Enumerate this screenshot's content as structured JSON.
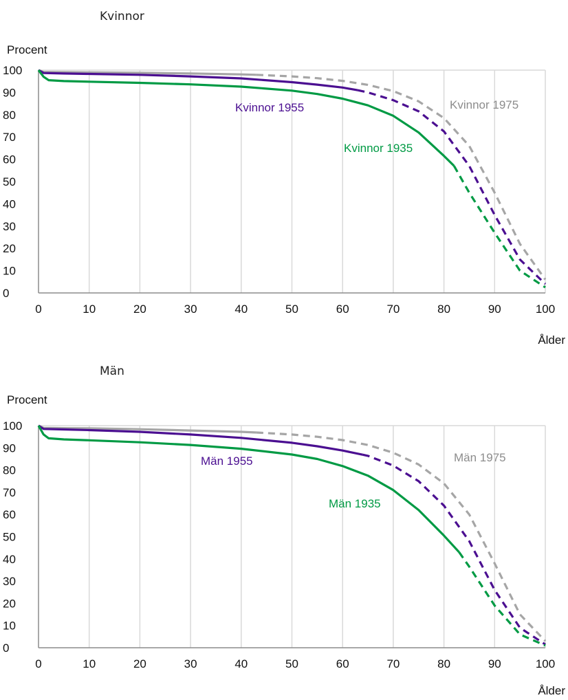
{
  "chart_data": [
    {
      "type": "line",
      "title": "Kvinnor",
      "ylabel": "Procent",
      "xlabel": "Ålder",
      "xlim": [
        0,
        100
      ],
      "ylim": [
        0,
        100
      ],
      "xticks": [
        "0",
        "10",
        "20",
        "30",
        "40",
        "50",
        "60",
        "70",
        "80",
        "90",
        "100"
      ],
      "yticks": [
        "0",
        "10",
        "20",
        "30",
        "40",
        "50",
        "60",
        "70",
        "80",
        "90",
        "100"
      ],
      "grid": true,
      "series": [
        {
          "name": "Kvinnor 1975",
          "color": "#a6a6a6",
          "observed_until": 43,
          "x": [
            0,
            1,
            5,
            10,
            20,
            30,
            40,
            43,
            50,
            55,
            60,
            65,
            70,
            75,
            80,
            85,
            90,
            95,
            100
          ],
          "y": [
            100,
            99.2,
            99.1,
            99.0,
            98.8,
            98.5,
            98.1,
            97.9,
            97.2,
            96.4,
            95.2,
            93.4,
            90.6,
            86.0,
            78.5,
            66.0,
            45.0,
            22.0,
            6.0
          ]
        },
        {
          "name": "Kvinnor 1955",
          "color": "#4b0f91",
          "observed_until": 63,
          "x": [
            0,
            1,
            5,
            10,
            20,
            30,
            40,
            50,
            55,
            60,
            63,
            65,
            70,
            75,
            80,
            85,
            90,
            95,
            100
          ],
          "y": [
            100,
            98.7,
            98.5,
            98.3,
            97.9,
            97.2,
            96.3,
            94.6,
            93.5,
            92.2,
            91.0,
            90.0,
            86.5,
            81.5,
            72.5,
            57.0,
            35.0,
            15.0,
            4.0
          ]
        },
        {
          "name": "Kvinnor 1935",
          "color": "#009a44",
          "observed_until": 82,
          "x": [
            0,
            1,
            2,
            5,
            10,
            20,
            30,
            40,
            50,
            55,
            60,
            65,
            70,
            75,
            80,
            82,
            85,
            90,
            95,
            100
          ],
          "y": [
            100,
            97,
            95.5,
            95.1,
            94.8,
            94.3,
            93.6,
            92.6,
            90.8,
            89.3,
            87.2,
            84.2,
            79.5,
            72.0,
            61.5,
            57.0,
            45.0,
            27.0,
            10.0,
            2.5
          ]
        }
      ]
    },
    {
      "type": "line",
      "title": "Män",
      "ylabel": "Procent",
      "xlabel": "Ålder",
      "xlim": [
        0,
        100
      ],
      "ylim": [
        0,
        100
      ],
      "xticks": [
        "0",
        "10",
        "20",
        "30",
        "40",
        "50",
        "60",
        "70",
        "80",
        "90",
        "100"
      ],
      "yticks": [
        "0",
        "10",
        "20",
        "30",
        "40",
        "50",
        "60",
        "70",
        "80",
        "90",
        "100"
      ],
      "grid": true,
      "series": [
        {
          "name": "Män 1975",
          "color": "#a6a6a6",
          "observed_until": 43,
          "x": [
            0,
            1,
            5,
            10,
            20,
            30,
            40,
            43,
            50,
            55,
            60,
            65,
            70,
            75,
            80,
            85,
            90,
            95,
            100
          ],
          "y": [
            100,
            99.0,
            98.9,
            98.8,
            98.4,
            97.8,
            97.2,
            96.9,
            96.0,
            95.0,
            93.5,
            91.3,
            87.8,
            82.5,
            74.0,
            60.0,
            38.0,
            15.0,
            3.0
          ]
        },
        {
          "name": "Män 1955",
          "color": "#4b0f91",
          "observed_until": 64,
          "x": [
            0,
            1,
            5,
            10,
            20,
            30,
            40,
            50,
            55,
            60,
            64,
            65,
            70,
            75,
            80,
            85,
            90,
            95,
            100
          ],
          "y": [
            100,
            98.5,
            98.3,
            98.0,
            97.2,
            96.0,
            94.5,
            92.3,
            90.7,
            88.8,
            86.9,
            86.4,
            82.0,
            75.0,
            64.0,
            48.0,
            26.0,
            9.0,
            1.5
          ]
        },
        {
          "name": "Män 1935",
          "color": "#009a44",
          "observed_until": 83,
          "x": [
            0,
            1,
            2,
            5,
            10,
            20,
            30,
            40,
            50,
            55,
            60,
            65,
            70,
            75,
            80,
            83,
            85,
            90,
            95,
            100
          ],
          "y": [
            100,
            96,
            94.3,
            93.8,
            93.4,
            92.5,
            91.3,
            89.6,
            87.0,
            85.0,
            81.8,
            77.5,
            71.0,
            62.0,
            50.5,
            43.0,
            36.5,
            19.0,
            6.0,
            1.0
          ]
        }
      ]
    }
  ]
}
